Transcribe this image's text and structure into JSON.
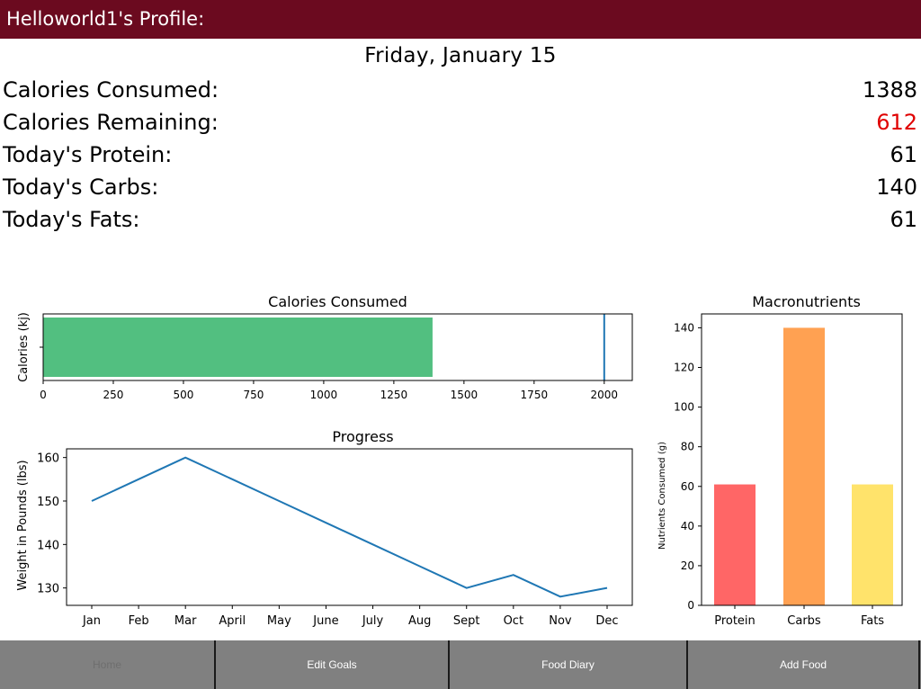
{
  "header": {
    "title": "Helloworld1's Profile:"
  },
  "date": "Friday, January 15",
  "stats": [
    {
      "label": "Calories Consumed:",
      "value": "1388",
      "color": "#000000"
    },
    {
      "label": "Calories Remaining:",
      "value": "612",
      "color": "#e00000"
    },
    {
      "label": "Today's Protein:",
      "value": "61",
      "color": "#000000"
    },
    {
      "label": "Today's Carbs:",
      "value": "140",
      "color": "#000000"
    },
    {
      "label": "Today's Fats:",
      "value": "61",
      "color": "#000000"
    }
  ],
  "chart_data": [
    {
      "type": "bar",
      "orientation": "horizontal",
      "title": "Calories Consumed",
      "xlabel": "",
      "ylabel": "Calories (kj)",
      "values": [
        1388
      ],
      "bar_color": "#52bf80",
      "goal_line": 2000,
      "goal_color": "#1f77b4",
      "xlim": [
        0,
        2100
      ],
      "xticks": [
        "0",
        "250",
        "500",
        "750",
        "1000",
        "1250",
        "1500",
        "1750",
        "2000"
      ]
    },
    {
      "type": "line",
      "title": "Progress",
      "xlabel": "",
      "ylabel": "Weight in Pounds (lbs)",
      "categories": [
        "Jan",
        "Feb",
        "Mar",
        "April",
        "May",
        "June",
        "July",
        "Aug",
        "Sept",
        "Oct",
        "Nov",
        "Dec"
      ],
      "values": [
        150,
        155,
        160,
        155,
        150,
        145,
        140,
        135,
        130,
        133,
        128,
        130
      ],
      "line_color": "#1f77b4",
      "ylim": [
        126,
        162
      ],
      "yticks": [
        "130",
        "140",
        "150",
        "160"
      ]
    },
    {
      "type": "bar",
      "title": "Macronutrients",
      "xlabel": "",
      "ylabel": "Nutrients Consumed (g)",
      "categories": [
        "Protein",
        "Carbs",
        "Fats"
      ],
      "values": [
        61,
        140,
        61
      ],
      "colors": [
        "#ff6666",
        "#ffa152",
        "#ffe36b"
      ],
      "ylim": [
        0,
        147
      ],
      "yticks": [
        "0",
        "20",
        "40",
        "60",
        "80",
        "100",
        "120",
        "140"
      ]
    }
  ],
  "nav": {
    "items": [
      {
        "label": "Home",
        "active": true
      },
      {
        "label": "Edit Goals",
        "active": false
      },
      {
        "label": "Food Diary",
        "active": false
      },
      {
        "label": "Add Food",
        "active": false
      }
    ]
  }
}
